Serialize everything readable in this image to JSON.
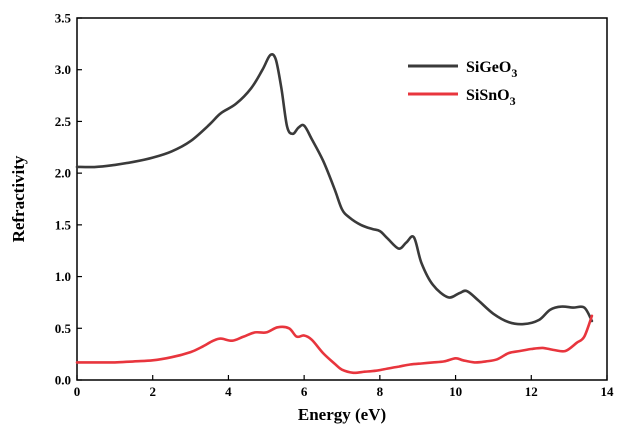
{
  "chart_data": {
    "type": "line",
    "title": "",
    "xlabel": "Energy (eV)",
    "ylabel": "Refractivity",
    "xlim": [
      0,
      14
    ],
    "ylim": [
      0,
      3.5
    ],
    "xticks": [
      0,
      2,
      4,
      6,
      8,
      10,
      12,
      14
    ],
    "yticks": [
      0.0,
      0.5,
      1.0,
      1.5,
      2.0,
      2.5,
      3.0,
      3.5
    ],
    "grid": false,
    "legend_position": "top-right",
    "series": [
      {
        "name": "SiGeO",
        "name_subscript": "3",
        "color": "#3a3a3a",
        "x": [
          0,
          0.5,
          1.0,
          1.5,
          2.0,
          2.5,
          3.0,
          3.5,
          3.8,
          4.2,
          4.6,
          4.9,
          5.1,
          5.25,
          5.4,
          5.55,
          5.7,
          5.85,
          6.0,
          6.2,
          6.5,
          6.8,
          7.0,
          7.2,
          7.5,
          7.8,
          8.0,
          8.2,
          8.5,
          8.7,
          8.9,
          9.1,
          9.4,
          9.8,
          10.1,
          10.3,
          10.6,
          11.0,
          11.4,
          11.8,
          12.2,
          12.5,
          12.8,
          13.1,
          13.4,
          13.6
        ],
        "y": [
          2.06,
          2.06,
          2.08,
          2.11,
          2.15,
          2.21,
          2.31,
          2.47,
          2.58,
          2.67,
          2.82,
          3.0,
          3.14,
          3.1,
          2.82,
          2.45,
          2.38,
          2.44,
          2.46,
          2.33,
          2.12,
          1.85,
          1.65,
          1.57,
          1.5,
          1.46,
          1.44,
          1.37,
          1.27,
          1.33,
          1.38,
          1.13,
          0.92,
          0.8,
          0.84,
          0.86,
          0.77,
          0.64,
          0.56,
          0.54,
          0.58,
          0.68,
          0.71,
          0.7,
          0.7,
          0.57
        ]
      },
      {
        "name": "SiSnO",
        "name_subscript": "3",
        "color": "#e8353d",
        "x": [
          0,
          0.5,
          1.0,
          1.5,
          2.0,
          2.5,
          3.0,
          3.3,
          3.6,
          3.8,
          4.1,
          4.4,
          4.7,
          5.0,
          5.3,
          5.6,
          5.8,
          6.0,
          6.2,
          6.5,
          6.8,
          7.0,
          7.3,
          7.6,
          7.9,
          8.2,
          8.5,
          8.8,
          9.1,
          9.4,
          9.7,
          10.0,
          10.2,
          10.5,
          10.8,
          11.1,
          11.4,
          11.7,
          12.0,
          12.3,
          12.6,
          12.9,
          13.2,
          13.4,
          13.6
        ],
        "y": [
          0.17,
          0.17,
          0.17,
          0.18,
          0.19,
          0.22,
          0.27,
          0.32,
          0.38,
          0.4,
          0.38,
          0.42,
          0.46,
          0.46,
          0.51,
          0.5,
          0.42,
          0.43,
          0.39,
          0.26,
          0.16,
          0.1,
          0.07,
          0.08,
          0.09,
          0.11,
          0.13,
          0.15,
          0.16,
          0.17,
          0.18,
          0.21,
          0.19,
          0.17,
          0.18,
          0.2,
          0.26,
          0.28,
          0.3,
          0.31,
          0.29,
          0.28,
          0.36,
          0.42,
          0.62
        ]
      }
    ]
  }
}
